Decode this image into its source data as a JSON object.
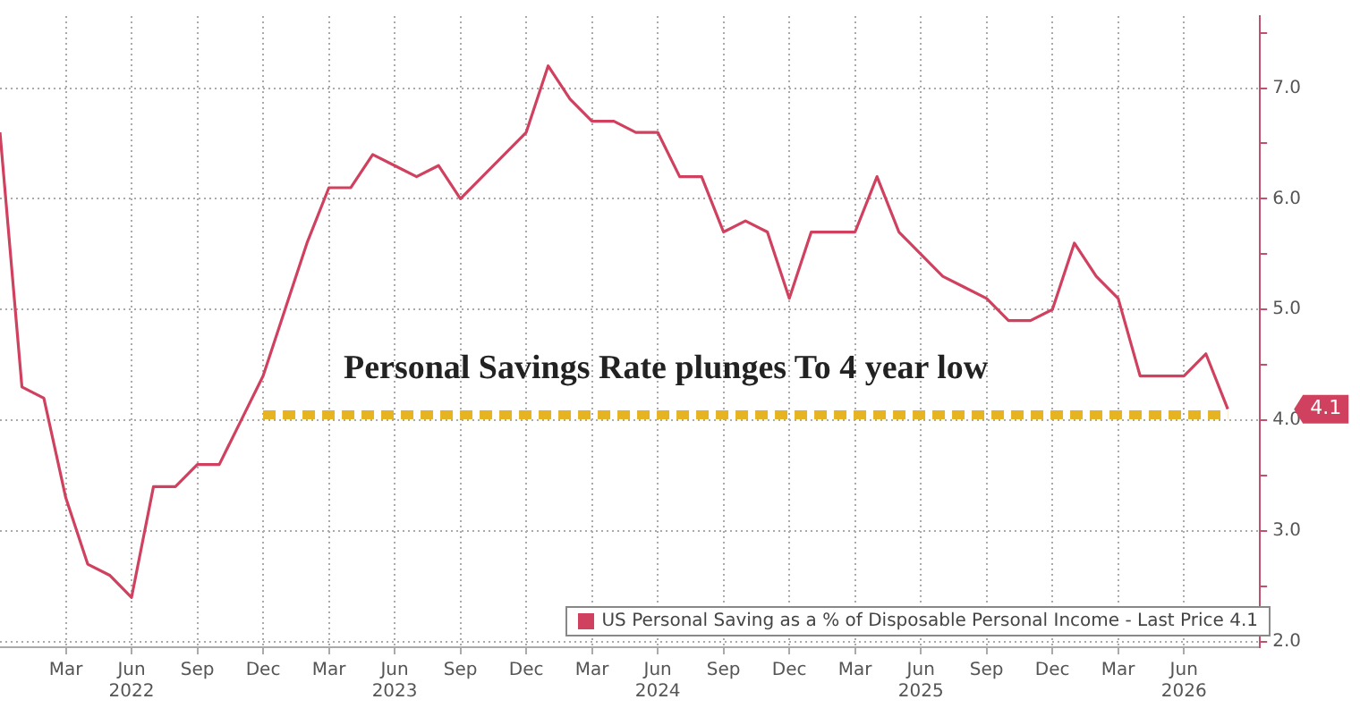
{
  "chart_data": {
    "type": "line",
    "x": [
      "2021-12",
      "2022-01",
      "2022-02",
      "2022-03",
      "2022-04",
      "2022-05",
      "2022-06",
      "2022-07",
      "2022-08",
      "2022-09",
      "2022-10",
      "2022-11",
      "2022-12",
      "2023-01",
      "2023-02",
      "2023-03",
      "2023-04",
      "2023-05",
      "2023-06",
      "2023-07",
      "2023-08",
      "2023-09",
      "2023-10",
      "2023-11",
      "2023-12",
      "2024-01",
      "2024-02",
      "2024-03",
      "2024-04",
      "2024-05",
      "2024-06",
      "2024-07",
      "2024-08",
      "2024-09",
      "2024-10",
      "2024-11",
      "2024-12",
      "2025-01",
      "2025-02",
      "2025-03",
      "2025-04",
      "2025-05",
      "2025-06",
      "2025-07",
      "2025-08",
      "2025-09",
      "2025-10",
      "2025-11",
      "2025-12",
      "2026-01",
      "2026-02",
      "2026-03",
      "2026-04",
      "2026-05",
      "2026-06",
      "2026-07",
      "2026-08"
    ],
    "series": [
      {
        "name": "US Personal Saving as a % of Disposable Personal Income - Last Price 4.1",
        "color": "#d0405f",
        "values": [
          6.6,
          4.3,
          4.2,
          3.3,
          2.7,
          2.6,
          2.4,
          3.4,
          3.4,
          3.6,
          3.6,
          4.0,
          4.4,
          5.0,
          5.6,
          6.1,
          6.1,
          6.4,
          6.3,
          6.2,
          6.3,
          6.0,
          6.2,
          6.4,
          6.6,
          7.2,
          6.9,
          6.7,
          6.7,
          6.6,
          6.6,
          6.2,
          6.2,
          5.7,
          5.8,
          5.7,
          5.1,
          5.7,
          5.7,
          5.7,
          6.2,
          5.7,
          5.5,
          5.3,
          5.2,
          5.1,
          4.9,
          4.9,
          5.0,
          5.6,
          5.3,
          5.1,
          4.4,
          4.4,
          4.4,
          4.6,
          4.1
        ]
      },
      {
        "color": "#e6b422",
        "line_style": "dashed",
        "x": [
          "2022-12",
          "2026-08"
        ],
        "values": [
          4.05,
          4.05
        ]
      }
    ],
    "xlim": [
      "2021-12",
      "2026-09-15"
    ],
    "xticks": [
      {
        "value": "2022-03",
        "label": "Mar"
      },
      {
        "value": "2022-06",
        "label": "Jun\n2022"
      },
      {
        "value": "2022-09",
        "label": "Sep"
      },
      {
        "value": "2022-12",
        "label": "Dec"
      },
      {
        "value": "2023-03",
        "label": "Mar"
      },
      {
        "value": "2023-06",
        "label": "Jun\n2023"
      },
      {
        "value": "2023-09",
        "label": "Sep"
      },
      {
        "value": "2023-12",
        "label": "Dec"
      },
      {
        "value": "2024-03",
        "label": "Mar"
      },
      {
        "value": "2024-06",
        "label": "Jun\n2024"
      },
      {
        "value": "2024-09",
        "label": "Sep"
      },
      {
        "value": "2024-12",
        "label": "Dec"
      },
      {
        "value": "2025-03",
        "label": "Mar"
      },
      {
        "value": "2025-06",
        "label": "Jun\n2025"
      },
      {
        "value": "2025-09",
        "label": "Sep"
      },
      {
        "value": "2025-12",
        "label": "Dec"
      },
      {
        "value": "2026-03",
        "label": "Mar"
      },
      {
        "value": "2026-06",
        "label": "Jun\n2026"
      }
    ],
    "ylim": [
      1.95,
      7.65
    ],
    "yticks": [
      {
        "value": 2,
        "label": "2.0"
      },
      {
        "value": 2.5,
        "label": null
      },
      {
        "value": 3,
        "label": "3.0"
      },
      {
        "value": 3.5,
        "label": null
      },
      {
        "value": 4,
        "label": "4.0"
      },
      {
        "value": 4.5,
        "label": null
      },
      {
        "value": 5,
        "label": "5.0"
      },
      {
        "value": 5.5,
        "label": null
      },
      {
        "value": 6,
        "label": "6.0"
      },
      {
        "value": 6.5,
        "label": null
      },
      {
        "value": 7,
        "label": "7.0"
      },
      {
        "value": 7.5,
        "label": null
      }
    ],
    "annotations": [
      "Personal Savings Rate plunges To 4 year low",
      "4.1"
    ],
    "grid": true,
    "legend": "bottom right",
    "marker": "none",
    "line_style": "solid"
  }
}
